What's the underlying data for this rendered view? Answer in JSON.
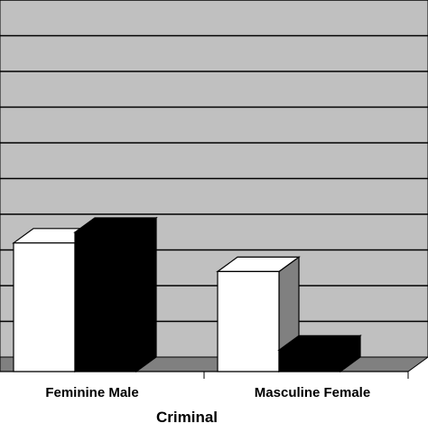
{
  "chart_data": {
    "type": "bar",
    "style": "3d",
    "title": "",
    "xlabel": "Criminal",
    "ylabel": "",
    "categories": [
      "Feminine Male",
      "Masculine Female"
    ],
    "series": [
      {
        "values": [
          3.6,
          2.8
        ]
      },
      {
        "values": [
          3.9,
          0.6
        ]
      }
    ],
    "ylim": [
      0,
      10
    ],
    "grid": true,
    "legend": "none",
    "colors": {
      "plot_background": "#c0c0c0",
      "floor": "#808080",
      "series_fill": [
        "#ffffff",
        "#000000"
      ],
      "side_shade": [
        "#808080",
        "#000000"
      ],
      "top_shade": [
        "#ffffff",
        "#000000"
      ]
    }
  }
}
